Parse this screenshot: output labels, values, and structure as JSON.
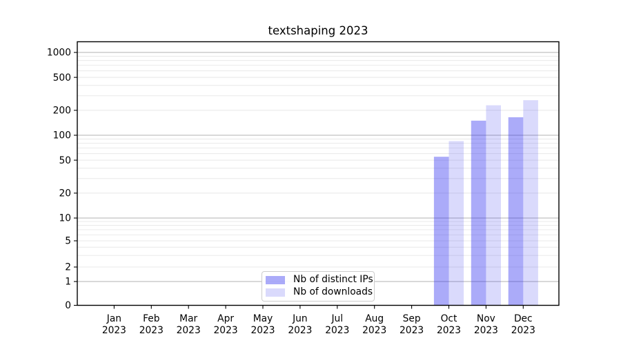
{
  "chart_data": {
    "type": "bar",
    "title": "textshaping 2023",
    "x_categories": [
      {
        "month": "Jan",
        "year": "2023"
      },
      {
        "month": "Feb",
        "year": "2023"
      },
      {
        "month": "Mar",
        "year": "2023"
      },
      {
        "month": "Apr",
        "year": "2023"
      },
      {
        "month": "May",
        "year": "2023"
      },
      {
        "month": "Jun",
        "year": "2023"
      },
      {
        "month": "Jul",
        "year": "2023"
      },
      {
        "month": "Aug",
        "year": "2023"
      },
      {
        "month": "Sep",
        "year": "2023"
      },
      {
        "month": "Oct",
        "year": "2023"
      },
      {
        "month": "Nov",
        "year": "2023"
      },
      {
        "month": "Dec",
        "year": "2023"
      }
    ],
    "series": [
      {
        "name": "Nb of distinct IPs",
        "fill": "rgba(34,34,238,0.38)",
        "swatch_hex": "#a9a9f4",
        "values": [
          0,
          0,
          0,
          0,
          0,
          0,
          0,
          0,
          0,
          55,
          150,
          165
        ]
      },
      {
        "name": "Nb of downloads",
        "fill": "rgba(34,34,238,0.17)",
        "swatch_hex": "#d9d9f9",
        "values": [
          0,
          0,
          0,
          0,
          0,
          0,
          0,
          0,
          0,
          85,
          230,
          265
        ]
      }
    ],
    "y_axis": {
      "scale": "symlog",
      "tick_labels": [
        "0",
        "1",
        "2",
        "5",
        "10",
        "20",
        "50",
        "100",
        "200",
        "500",
        "1000"
      ],
      "tick_values": [
        0,
        1,
        2,
        5,
        10,
        20,
        50,
        100,
        200,
        500,
        1000
      ],
      "ylim": [
        0,
        1300
      ]
    },
    "grid": {
      "major_color": "#b2b2b2",
      "minor_color": "#e8e8e8",
      "visible": true
    },
    "legend": {
      "position": "lower center"
    },
    "colors": {
      "spine": "#000000",
      "text": "#000000"
    }
  }
}
